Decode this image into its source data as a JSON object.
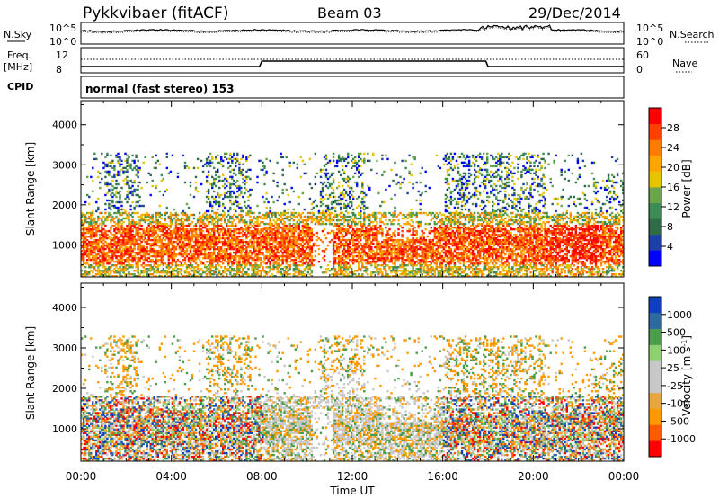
{
  "header": {
    "station": "Pykkvibaer (fitACF)",
    "beam": "Beam 03",
    "date": "29/Dec/2014"
  },
  "noise_panel": {
    "left_label": "N.Sky",
    "left_ticks": [
      "10^5",
      "10^0"
    ],
    "right_label": "N.Search",
    "right_ticks": [
      "10^5",
      "10^0"
    ]
  },
  "freq_panel": {
    "left_label_1": "Freq.",
    "left_label_2": "[MHz]",
    "left_ticks": [
      "12",
      "8"
    ],
    "right_label": "Nave",
    "right_ticks": [
      "60",
      "0"
    ]
  },
  "cpid": {
    "label": "CPID",
    "value": "normal (fast stereo) 153"
  },
  "x_axis": {
    "label": "Time UT",
    "ticks": [
      "00:00",
      "04:00",
      "08:00",
      "12:00",
      "16:00",
      "20:00",
      "00:00"
    ]
  },
  "colors": {
    "power": [
      "#0000ff",
      "#1e3fa8",
      "#2f6b47",
      "#3e8c55",
      "#6aa54a",
      "#e6c400",
      "#ffa500",
      "#ff7a00",
      "#ff3f00",
      "#ff0000"
    ],
    "velocity": [
      "#ff0000",
      "#ff5a00",
      "#ff9900",
      "#e8a640",
      "#c8c8c8",
      "#c8c8c8",
      "#8fd070",
      "#4b9c4b",
      "#2e6aa0",
      "#1040c0"
    ]
  },
  "chart_data": [
    {
      "type": "heatmap",
      "title": "Power",
      "xlabel": "Time UT",
      "ylabel": "Slant Range [km]",
      "xlim": [
        0,
        24
      ],
      "ylim": [
        200,
        4600
      ],
      "yticks": [
        "1000",
        "2000",
        "3000",
        "4000"
      ],
      "colorbar": {
        "label": "Power [dB]",
        "ticks": [
          "28",
          "24",
          "20",
          "16",
          "12",
          "8",
          "4"
        ],
        "range": [
          0,
          30
        ]
      }
    },
    {
      "type": "heatmap",
      "title": "Velocity",
      "xlabel": "Time UT",
      "ylabel": "Slant Range [km]",
      "xlim": [
        0,
        24
      ],
      "ylim": [
        200,
        4600
      ],
      "yticks": [
        "1000",
        "2000",
        "3000",
        "4000"
      ],
      "colorbar": {
        "label": "Velocity [m s",
        "label_sup": "-1",
        "label_end": "]",
        "ticks": [
          "1000",
          "500",
          "100",
          "25",
          "-25",
          "-100",
          "-500",
          "-1000"
        ]
      }
    }
  ]
}
